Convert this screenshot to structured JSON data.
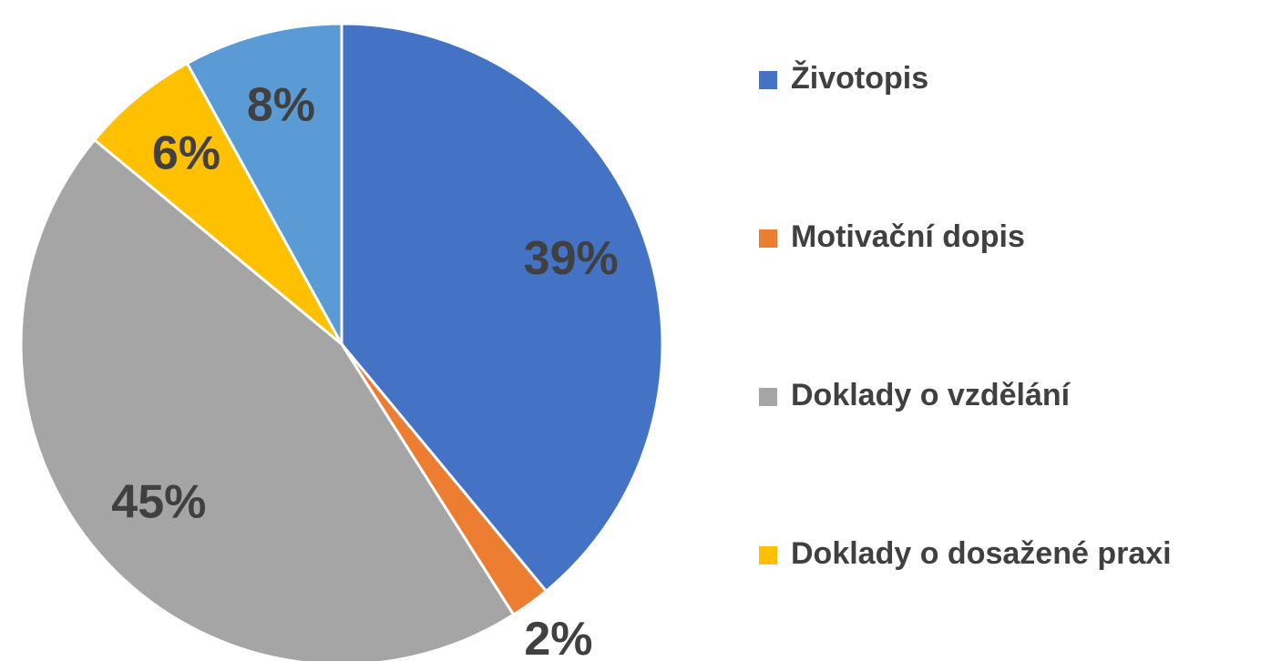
{
  "chart_data": {
    "type": "pie",
    "categories": [
      "Životopis",
      "Motivační dopis",
      "Doklady o vzdělání",
      "Doklady o dosažené praxi",
      null
    ],
    "values": [
      39,
      2,
      45,
      6,
      8
    ],
    "value_labels": [
      "39%",
      "2%",
      "45%",
      "6%",
      "8%"
    ],
    "colors": [
      "#4472c4",
      "#ed7d31",
      "#a5a5a5",
      "#ffc000",
      "#5b9bd5"
    ],
    "legend": "right"
  }
}
